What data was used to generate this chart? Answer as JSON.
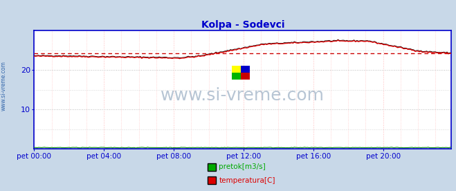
{
  "title": "Kolpa - Sodevci",
  "title_color": "#0000cc",
  "bg_color": "#c8d8e8",
  "plot_bg_color": "#ffffff",
  "x_label_color": "#0000cc",
  "watermark_text": "www.si-vreme.com",
  "watermark_color": "#6080a0",
  "watermark_alpha": 0.45,
  "legend_labels": [
    "temperatura[C]",
    "pretok[m3/s]"
  ],
  "legend_colors": [
    "#dd0000",
    "#00aa00"
  ],
  "x_ticks": [
    "pet 00:00",
    "pet 04:00",
    "pet 08:00",
    "pet 12:00",
    "pet 16:00",
    "pet 20:00"
  ],
  "x_tick_positions": [
    0,
    48,
    96,
    144,
    192,
    240
  ],
  "y_ticks": [
    10,
    20
  ],
  "ylim": [
    0,
    30
  ],
  "xlim": [
    0,
    287
  ],
  "avg_line_value": 24.3,
  "avg_line_color": "#cc0000",
  "temp_color": "#dd0000",
  "black_line_color": "#111111",
  "flow_color": "#008800",
  "axis_color": "#0000cc",
  "vgrid_color": "#ffbbbb",
  "hgrid_color": "#bbbbbb",
  "side_label": "www.si-vreme.com",
  "side_label_color": "#3366aa"
}
